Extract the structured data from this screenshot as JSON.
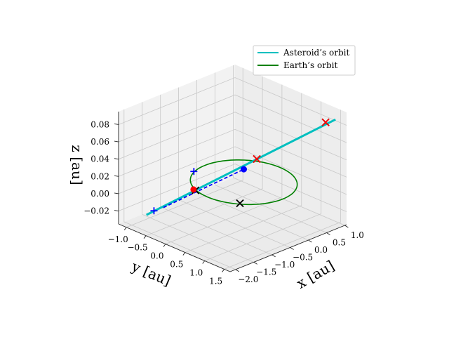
{
  "chart_data": {
    "type": "line",
    "projection": "3d",
    "grid": true,
    "legend_position": "top-right",
    "xlabel": "x [au]",
    "ylabel": "y [au]",
    "zlabel": "z [au]",
    "xlim": [
      -1.2,
      1.65
    ],
    "ylim": [
      -2.15,
      1.05
    ],
    "zlim": [
      -0.035,
      0.095
    ],
    "xticks": [
      -1.0,
      -0.5,
      0.0,
      0.5,
      1.0,
      1.5
    ],
    "xtick_labels": [
      "−1.0",
      "−0.5",
      "0.0",
      "0.5",
      "1.0",
      "1.5"
    ],
    "yticks": [
      1.0,
      0.5,
      0.0,
      -0.5,
      -1.0,
      -1.5,
      -2.0
    ],
    "ytick_labels": [
      "1.0",
      "0.5",
      "0.0",
      "−0.5",
      "−1.0",
      "−1.5",
      "−2.0"
    ],
    "zticks": [
      -0.02,
      0.0,
      0.02,
      0.04,
      0.06,
      0.08
    ],
    "ztick_labels": [
      "−0.02",
      "0.00",
      "0.02",
      "0.04",
      "0.06",
      "0.08"
    ],
    "series": [
      {
        "name": "Asteroid’s orbit",
        "color": "#00bfbf",
        "x": [
          -1.0,
          1.6
        ],
        "y": [
          -1.6,
          0.8
        ],
        "z": [
          -0.03,
          0.09
        ]
      },
      {
        "name": "Earth’s orbit",
        "color": "#008000",
        "center": [
          0.0,
          0.0,
          0.0
        ],
        "radius": 1.0
      }
    ],
    "extra_lines": [
      {
        "kind": "dashed",
        "color": "#0000ff",
        "x": [
          -0.75,
          0.0
        ],
        "y": [
          -1.4,
          0.0
        ],
        "z": [
          -0.02,
          0.015
        ]
      }
    ],
    "markers": [
      {
        "symbol": "x",
        "color": "#000000",
        "x": 1.3,
        "y": 0.85,
        "z": 0.08
      },
      {
        "symbol": "x",
        "color": "#ff0000",
        "x": 1.3,
        "y": 0.85,
        "z": 0.08
      },
      {
        "symbol": "x",
        "color": "#000000",
        "x": -0.55,
        "y": 0.95,
        "z": 0.0
      },
      {
        "symbol": "x",
        "color": "#ff0000",
        "x": -0.55,
        "y": 0.95,
        "z": 0.0
      },
      {
        "symbol": "x",
        "color": "#000000",
        "x": 0.6,
        "y": -0.75,
        "z": 0.0
      },
      {
        "symbol": "x",
        "color": "#000000",
        "x": -0.35,
        "y": -0.95,
        "z": 0.0
      },
      {
        "symbol": "o",
        "color": "#ff0000",
        "x": -0.4,
        "y": -0.95,
        "z": 0.0
      },
      {
        "symbol": "o",
        "color": "#0000ff",
        "x": 0.0,
        "y": 0.0,
        "z": 0.015
      },
      {
        "symbol": "+",
        "color": "#0000ff",
        "x": -0.95,
        "y": -0.35,
        "z": 0.0
      },
      {
        "symbol": "+",
        "color": "#0000ff",
        "x": -0.9,
        "y": -1.5,
        "z": -0.025
      }
    ]
  }
}
